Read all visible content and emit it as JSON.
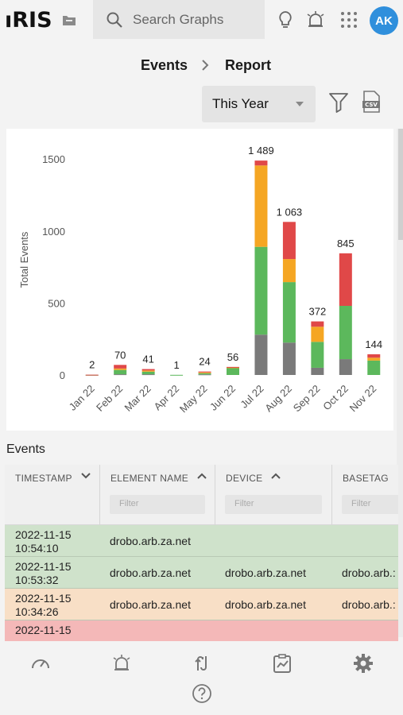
{
  "app": {
    "logo": "ıRIS"
  },
  "search": {
    "placeholder": "Search Graphs"
  },
  "user": {
    "initials": "AK",
    "avatar_color": "#2f8fdc"
  },
  "breadcrumb": {
    "items": [
      "Events",
      "Report"
    ]
  },
  "filters": {
    "period": "This Year"
  },
  "icons": {
    "folder": "folder-icon",
    "search": "search-icon",
    "bulb": "lightbulb-icon",
    "alarm": "alarm-icon",
    "apps": "apps-grid-icon",
    "funnel": "filter-icon",
    "csv": "csv-export-icon",
    "gauge": "dashboard-gauge-icon",
    "alerts": "alarm-icon",
    "flows": "flows-icon",
    "reports": "reports-icon",
    "settings": "gear-icon",
    "help": "help-icon"
  },
  "chart_data": {
    "type": "bar",
    "stacked": true,
    "ylabel": "Total Events",
    "ylim": [
      0,
      1600
    ],
    "yticks": [
      0,
      500,
      1000,
      1500
    ],
    "categories": [
      "Jan 22",
      "Feb 22",
      "Mar 22",
      "Apr 22",
      "May 22",
      "Jun 22",
      "Jul 22",
      "Aug 22",
      "Sep 22",
      "Oct 22",
      "Nov 22"
    ],
    "totals_label": [
      "2",
      "70",
      "41",
      "1",
      "24",
      "56",
      "1 489",
      "1 063",
      "372",
      "845",
      "144"
    ],
    "series": [
      {
        "color": "#7a7a7a",
        "values": [
          0,
          5,
          5,
          0,
          4,
          0,
          280,
          225,
          50,
          110,
          0
        ]
      },
      {
        "color": "#5cb85c",
        "values": [
          1,
          30,
          18,
          1,
          8,
          50,
          610,
          420,
          180,
          370,
          100
        ]
      },
      {
        "color": "#f5a623",
        "values": [
          0,
          10,
          8,
          0,
          6,
          3,
          565,
          160,
          105,
          0,
          20
        ]
      },
      {
        "color": "#e04848",
        "values": [
          1,
          25,
          10,
          0,
          6,
          3,
          34,
          258,
          37,
          365,
          24
        ]
      }
    ],
    "grid": false
  },
  "events": {
    "title": "Events",
    "columns": [
      {
        "title": "TIMESTAMP",
        "filter": ""
      },
      {
        "title": "ELEMENT NAME",
        "filter": "Filter"
      },
      {
        "title": "DEVICE",
        "filter": "Filter"
      },
      {
        "title": "BASETAG",
        "filter": "Filter"
      }
    ],
    "rows": [
      {
        "date": "2022-11-15",
        "time": "10:54:10",
        "element": "drobo.arb.za.net",
        "device": "",
        "basetag": "",
        "color": "#cfe2cb"
      },
      {
        "date": "2022-11-15",
        "time": "10:53:32",
        "element": "drobo.arb.za.net",
        "device": "drobo.arb.za.net",
        "basetag": "drobo.arb.:",
        "color": "#cfe2cb"
      },
      {
        "date": "2022-11-15",
        "time": "10:34:26",
        "element": "drobo.arb.za.net",
        "device": "drobo.arb.za.net",
        "basetag": "drobo.arb.:",
        "color": "#f8dfc6"
      },
      {
        "date": "2022-11-15",
        "time": "",
        "element": "",
        "device": "",
        "basetag": "",
        "color": "#f4b8b8"
      }
    ]
  }
}
